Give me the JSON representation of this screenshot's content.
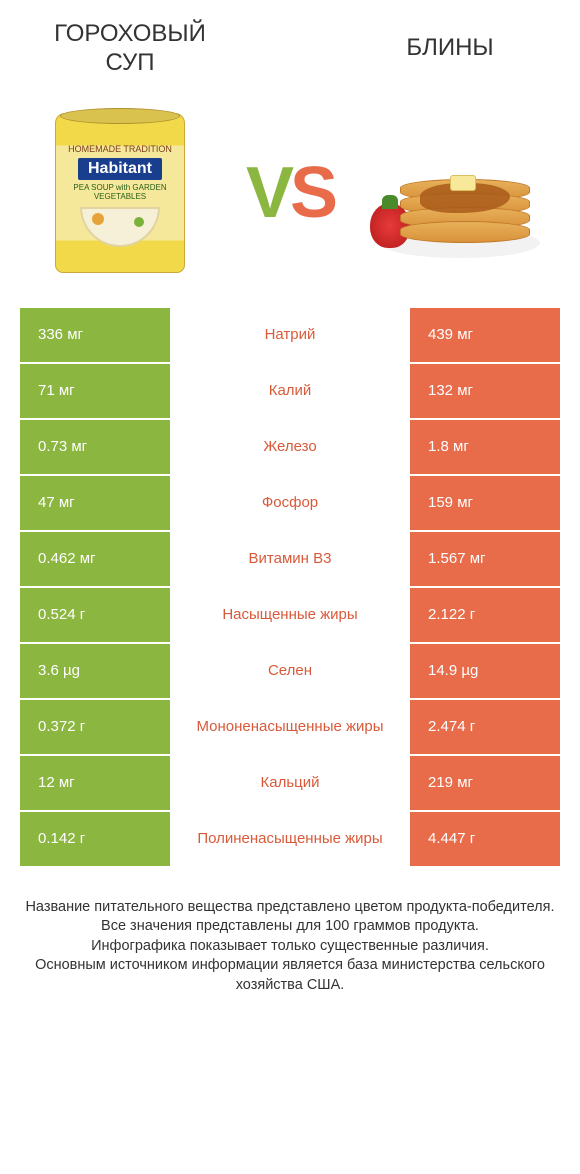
{
  "colors": {
    "green": "#8bb63f",
    "orange": "#e86b4a",
    "green_text": "#6a9a2a",
    "orange_text": "#d85a3a",
    "white": "#ffffff"
  },
  "header": {
    "left_title": "ГОРОХОВЫЙ СУП",
    "right_title": "БЛИНЫ",
    "vs_v": "V",
    "vs_s": "S"
  },
  "can": {
    "top_text": "HOMEMADE TRADITION",
    "brand": "Habitant",
    "sub": "PEA SOUP with GARDEN VEGETABLES"
  },
  "rows": [
    {
      "left": "336 мг",
      "label": "Натрий",
      "right": "439 мг",
      "winner": "right"
    },
    {
      "left": "71 мг",
      "label": "Калий",
      "right": "132 мг",
      "winner": "right"
    },
    {
      "left": "0.73 мг",
      "label": "Железо",
      "right": "1.8 мг",
      "winner": "right"
    },
    {
      "left": "47 мг",
      "label": "Фосфор",
      "right": "159 мг",
      "winner": "right"
    },
    {
      "left": "0.462 мг",
      "label": "Витамин B3",
      "right": "1.567 мг",
      "winner": "right"
    },
    {
      "left": "0.524 г",
      "label": "Насыщенные жиры",
      "right": "2.122 г",
      "winner": "right"
    },
    {
      "left": "3.6 µg",
      "label": "Селен",
      "right": "14.9 µg",
      "winner": "right"
    },
    {
      "left": "0.372 г",
      "label": "Мононенасыщенные жиры",
      "right": "2.474 г",
      "winner": "right"
    },
    {
      "left": "12 мг",
      "label": "Кальций",
      "right": "219 мг",
      "winner": "right"
    },
    {
      "left": "0.142 г",
      "label": "Полиненасыщенные жиры",
      "right": "4.447 г",
      "winner": "right"
    }
  ],
  "footer": {
    "line1": "Название питательного вещества представлено цветом продукта-победителя.",
    "line2": "Все значения представлены для 100 граммов продукта.",
    "line3": "Инфографика показывает только существенные различия.",
    "line4": "Основным источником информации является база министерства сельского хозяйства США."
  }
}
